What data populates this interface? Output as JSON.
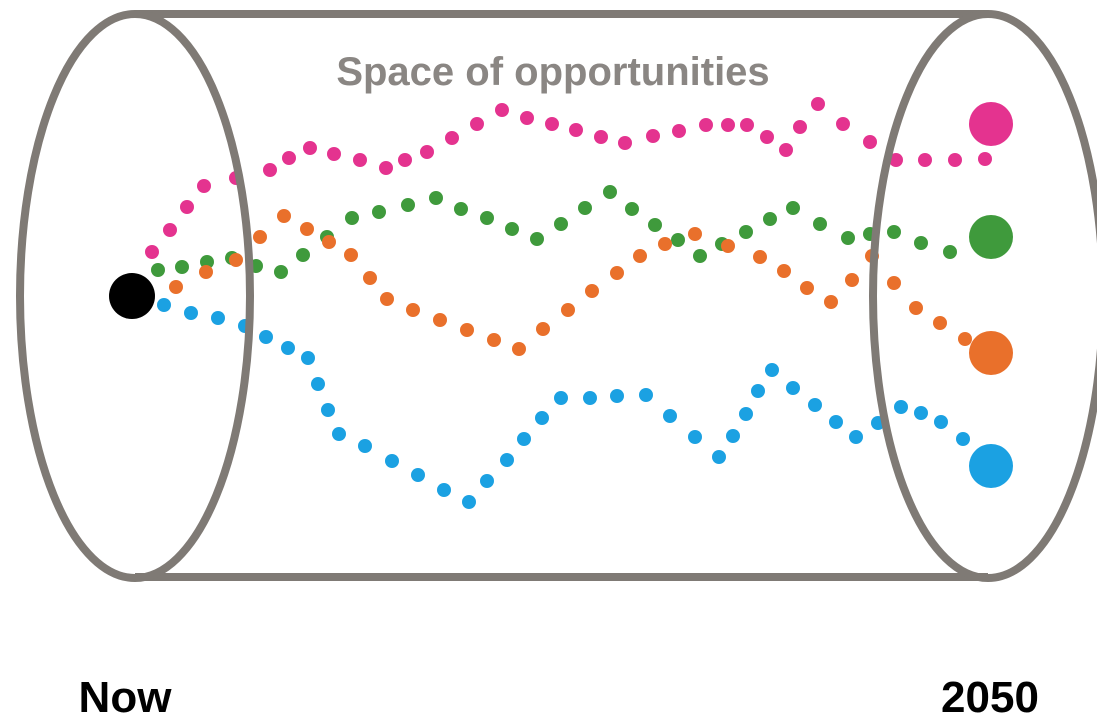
{
  "diagram": {
    "title": "Space of opportunities",
    "start_label": "Now",
    "end_label": "2050",
    "colors": {
      "outline": "#7f7a75",
      "title": "#8a8683",
      "start_point": "#000000"
    },
    "paths": [
      {
        "color": "#e4338f"
      },
      {
        "color": "#3f9a3c"
      },
      {
        "color": "#e9702b"
      },
      {
        "color": "#1ba1e2"
      }
    ]
  }
}
